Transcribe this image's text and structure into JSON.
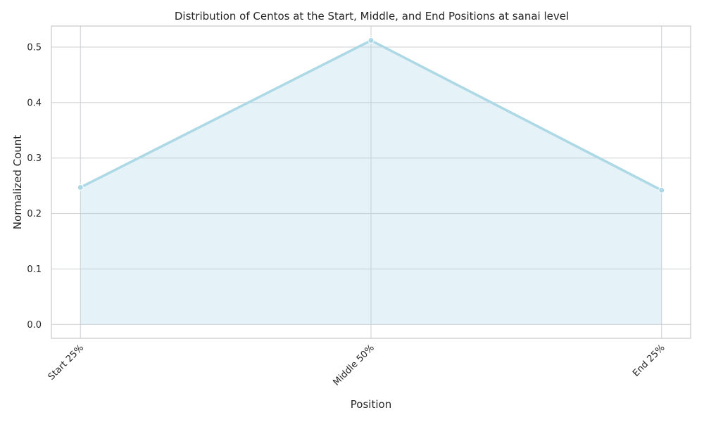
{
  "chart_data": {
    "type": "area",
    "title": "Distribution of Centos at the Start, Middle, and End Positions at sanai level",
    "xlabel": "Position",
    "ylabel": "Normalized Count",
    "categories": [
      "Start 25%",
      "Middle 50%",
      "End 25%"
    ],
    "values": [
      0.247,
      0.512,
      0.242
    ],
    "ylim": [
      -0.025,
      0.538
    ],
    "yticks": [
      "0.0",
      "0.1",
      "0.2",
      "0.3",
      "0.4",
      "0.5"
    ],
    "grid": true,
    "legend": "none",
    "colors": {
      "line": "#add8e6",
      "fill": "#add8e6",
      "grid": "#d0d3d6",
      "spine": "#cccccc"
    }
  }
}
